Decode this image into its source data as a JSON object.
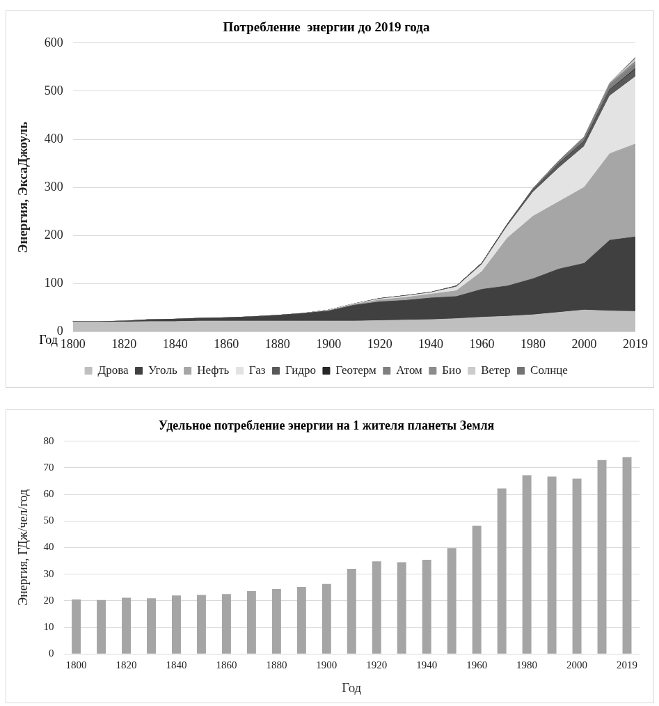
{
  "chart_data": [
    {
      "type": "area",
      "title": "Потребление  энергии до 2019 года",
      "ylabel": "Энергия, ЭксаДжоуль",
      "xlabel": "Год",
      "stacked": true,
      "grid": "y",
      "legend": "bottom",
      "categories": [
        "1800",
        null,
        "1820",
        null,
        "1840",
        null,
        "1860",
        null,
        "1880",
        null,
        "1900",
        null,
        "1920",
        null,
        "1940",
        null,
        "1960",
        null,
        "1980",
        null,
        "2000",
        null,
        "2019"
      ],
      "ylim": [
        0,
        600
      ],
      "yticks": [
        0,
        100,
        200,
        300,
        400,
        500,
        600
      ],
      "series": [
        {
          "name": "Дрова",
          "color": "#bfbfbf",
          "values": [
            20,
            20,
            20,
            21,
            21,
            22,
            22,
            22,
            22,
            22,
            22,
            22,
            23,
            24,
            25,
            27,
            30,
            32,
            35,
            40,
            45,
            43,
            42
          ]
        },
        {
          "name": "Уголь",
          "color": "#404040",
          "values": [
            1,
            1,
            2,
            4,
            5,
            6,
            7,
            9,
            12,
            16,
            21,
            33,
            39,
            41,
            45,
            46,
            58,
            63,
            75,
            90,
            97,
            147,
            155
          ]
        },
        {
          "name": "Нефть",
          "color": "#a6a6a6",
          "values": [
            0,
            0,
            0,
            0,
            0,
            0,
            0,
            0,
            0,
            0,
            1,
            2,
            4,
            6,
            8,
            12,
            37,
            100,
            130,
            140,
            158,
            180,
            193
          ]
        },
        {
          "name": "Газ",
          "color": "#e3e3e3",
          "values": [
            0,
            0,
            0,
            0,
            0,
            0,
            0,
            0,
            0,
            0,
            1,
            1,
            2,
            3,
            3,
            8,
            15,
            25,
            50,
            70,
            85,
            120,
            140
          ]
        },
        {
          "name": "Гидро",
          "color": "#595959",
          "values": [
            0,
            0,
            0,
            0,
            0,
            0,
            0,
            0,
            0,
            0,
            0,
            0,
            1,
            1,
            1,
            2,
            3,
            4,
            6,
            8,
            10,
            12,
            15
          ]
        },
        {
          "name": "Геотерм",
          "color": "#262626",
          "values": [
            0,
            0,
            0,
            0,
            0,
            0,
            0,
            0,
            0,
            0,
            0,
            0,
            0,
            0,
            0,
            0,
            0,
            0,
            0,
            1,
            1,
            1,
            2
          ]
        },
        {
          "name": "Атом",
          "color": "#7f7f7f",
          "values": [
            0,
            0,
            0,
            0,
            0,
            0,
            0,
            0,
            0,
            0,
            0,
            0,
            0,
            0,
            0,
            0,
            0,
            0,
            2,
            6,
            8,
            10,
            10
          ]
        },
        {
          "name": "Био",
          "color": "#8c8c8c",
          "values": [
            0,
            0,
            0,
            0,
            0,
            0,
            0,
            0,
            0,
            0,
            0,
            0,
            0,
            0,
            0,
            0,
            0,
            0,
            0,
            0,
            1,
            3,
            5
          ]
        },
        {
          "name": "Ветер",
          "color": "#cccccc",
          "values": [
            0,
            0,
            0,
            0,
            0,
            0,
            0,
            0,
            0,
            0,
            0,
            0,
            0,
            0,
            0,
            0,
            0,
            0,
            0,
            0,
            0,
            1,
            5
          ]
        },
        {
          "name": "Солнце",
          "color": "#737373",
          "values": [
            0,
            0,
            0,
            0,
            0,
            0,
            0,
            0,
            0,
            0,
            0,
            0,
            0,
            0,
            0,
            0,
            0,
            0,
            0,
            0,
            0,
            0,
            3
          ]
        }
      ]
    },
    {
      "type": "bar",
      "title": "Удельное потребление энергии на 1 жителя планеты Земля",
      "ylabel": "Энергия, ГДж/чел/год",
      "xlabel": "Год",
      "grid": "y",
      "color": "#a5a5a5",
      "categories": [
        "1800",
        null,
        "1820",
        null,
        "1840",
        null,
        "1860",
        null,
        "1880",
        null,
        "1900",
        null,
        "1920",
        null,
        "1940",
        null,
        "1960",
        null,
        "1980",
        null,
        "2000",
        null,
        "2019"
      ],
      "ylim": [
        0,
        80
      ],
      "yticks": [
        0,
        10,
        20,
        30,
        40,
        50,
        60,
        70,
        80
      ],
      "values": [
        20.5,
        20.3,
        21.1,
        20.9,
        22,
        22.2,
        22.5,
        23.6,
        24.4,
        25.2,
        26.3,
        32,
        34.8,
        34.5,
        35.4,
        39.8,
        48.2,
        62.2,
        67.2,
        66.7,
        65.9,
        72.9,
        74
      ]
    }
  ]
}
